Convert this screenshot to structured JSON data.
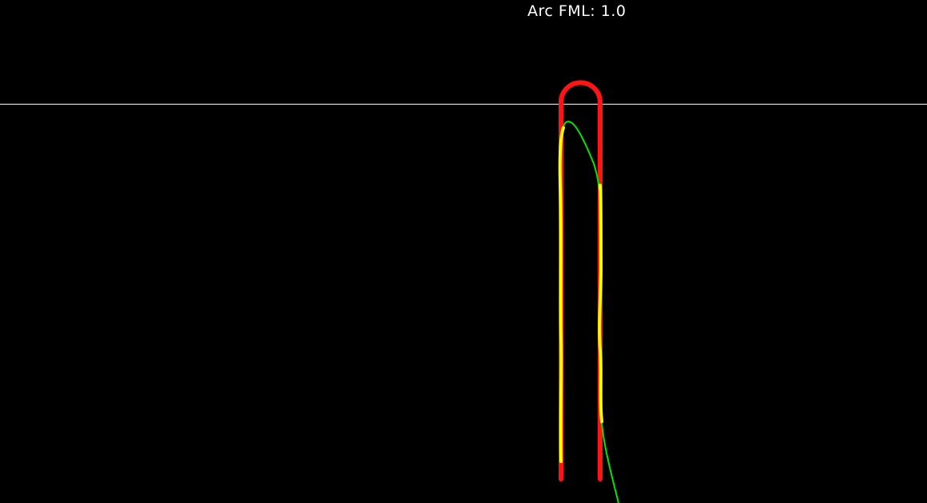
{
  "header": {
    "metric_label": "Arc FML:",
    "metric_value": "1.0"
  },
  "colors": {
    "background": "#000000",
    "reference_line": "#ffffff",
    "template": "#ff1414",
    "trace": "#ffff00",
    "trace_overshoot": "#00e600",
    "label": "#ffffff"
  }
}
